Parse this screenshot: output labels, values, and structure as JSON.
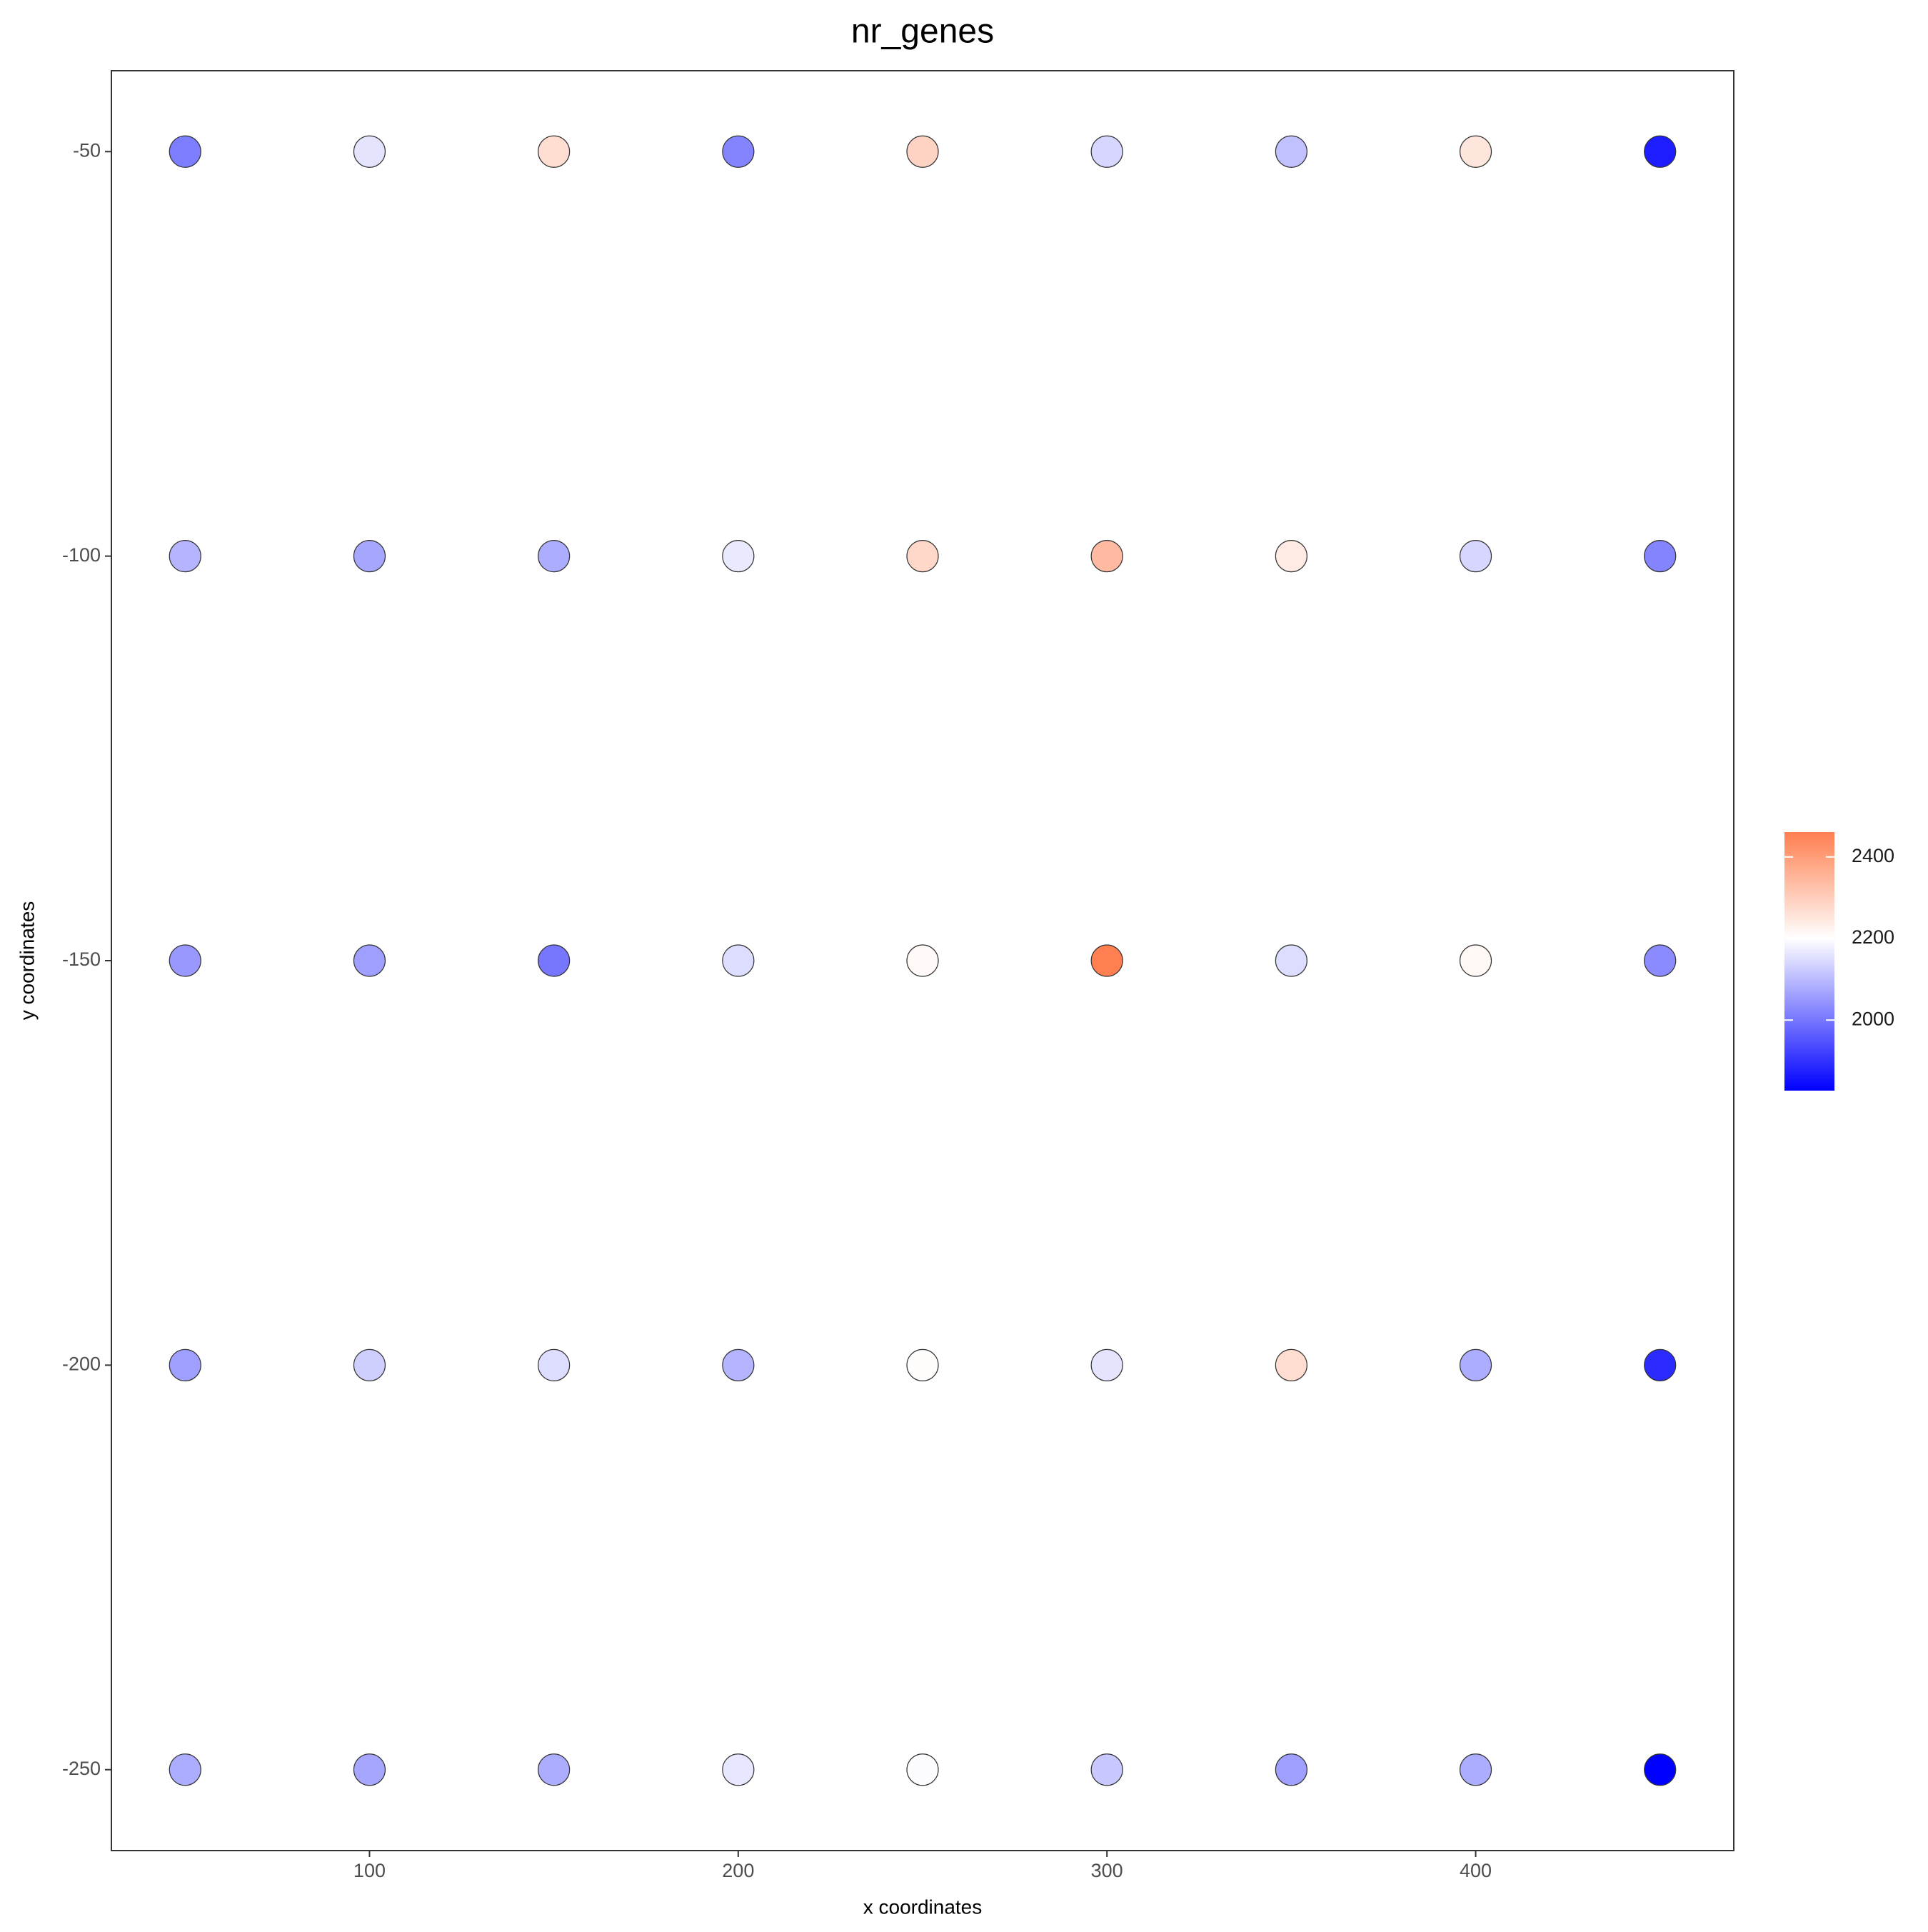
{
  "chart_data": {
    "type": "scatter",
    "title": "nr_genes",
    "x_label": "x coordinates",
    "y_label": "y coordinates",
    "x": [
      50,
      100,
      150,
      200,
      250,
      300,
      350,
      400,
      450,
      50,
      100,
      150,
      200,
      250,
      300,
      350,
      400,
      450,
      50,
      100,
      150,
      200,
      250,
      300,
      350,
      400,
      450,
      50,
      100,
      150,
      200,
      250,
      300,
      350,
      400,
      450,
      50,
      100,
      150,
      200,
      250,
      300,
      350,
      400,
      450
    ],
    "y": [
      -50,
      -50,
      -50,
      -50,
      -50,
      -50,
      -50,
      -50,
      -50,
      -100,
      -100,
      -100,
      -100,
      -100,
      -100,
      -100,
      -100,
      -100,
      -150,
      -150,
      -150,
      -150,
      -150,
      -150,
      -150,
      -150,
      -150,
      -200,
      -200,
      -200,
      -200,
      -200,
      -200,
      -200,
      -200,
      -200,
      -250,
      -250,
      -250,
      -250,
      -250,
      -250,
      -250,
      -250,
      -250
    ],
    "values": [
      2010,
      2160,
      2270,
      2020,
      2290,
      2140,
      2110,
      2250,
      1870,
      2090,
      2070,
      2080,
      2170,
      2280,
      2340,
      2240,
      2140,
      2020,
      2050,
      2060,
      2000,
      2150,
      2210,
      2461,
      2150,
      2215,
      2030,
      2060,
      2130,
      2150,
      2090,
      2205,
      2160,
      2270,
      2080,
      1890,
      2080,
      2070,
      2080,
      2165,
      2195,
      2120,
      2060,
      2080,
      1827
    ],
    "xlim": [
      30,
      470
    ],
    "ylim": [
      -260,
      -40
    ],
    "xticks": [
      100,
      200,
      300,
      400
    ],
    "yticks": [
      -50,
      -100,
      -150,
      -200,
      -250
    ],
    "colorscale": {
      "low": "#0000ff",
      "mid": "#ffffff",
      "high": "#ff7f50",
      "midpoint": 2200
    },
    "colorbar": {
      "lim": [
        1827,
        2461
      ],
      "ticks": [
        2000,
        2200,
        2400
      ]
    },
    "marker_edge_color": "#333333"
  }
}
